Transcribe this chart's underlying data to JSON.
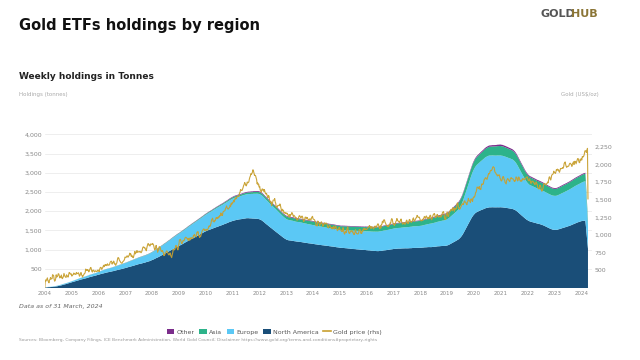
{
  "title": "Gold ETFs holdings by region",
  "subtitle": "Weekly holdings in Tonnes",
  "left_axis_label": "Holdings (tonnes)",
  "right_axis_label": "Gold (US$/oz)",
  "date_note": "Data as of 31 March, 2024",
  "sources": "Sources: Bloomberg, Company Filings, ICE Benchmark Administration, World Gold Council; Disclaimer https://www.gold.org/terms-and-conditions#proprietary-rights",
  "colors": {
    "north_america": "#1a4e78",
    "europe": "#5bc8f5",
    "asia": "#2db38a",
    "other": "#7b2d8b",
    "gold_price": "#c8a030",
    "background": "#ffffff",
    "title_underline": "#9a7d3a",
    "gold_text": "#8B7536",
    "hub_text": "#8B7536"
  },
  "ylim_left": [
    0,
    4500
  ],
  "ylim_right": [
    250,
    2700
  ],
  "yticks_left": [
    500,
    1000,
    1500,
    2000,
    2500,
    3000,
    3500,
    4000
  ],
  "yticks_right": [
    500,
    750,
    1000,
    1250,
    1500,
    1750,
    2000,
    2250
  ],
  "legend_labels": [
    "Other",
    "Asia",
    "Europe",
    "North America",
    "Gold price (rhs)"
  ]
}
